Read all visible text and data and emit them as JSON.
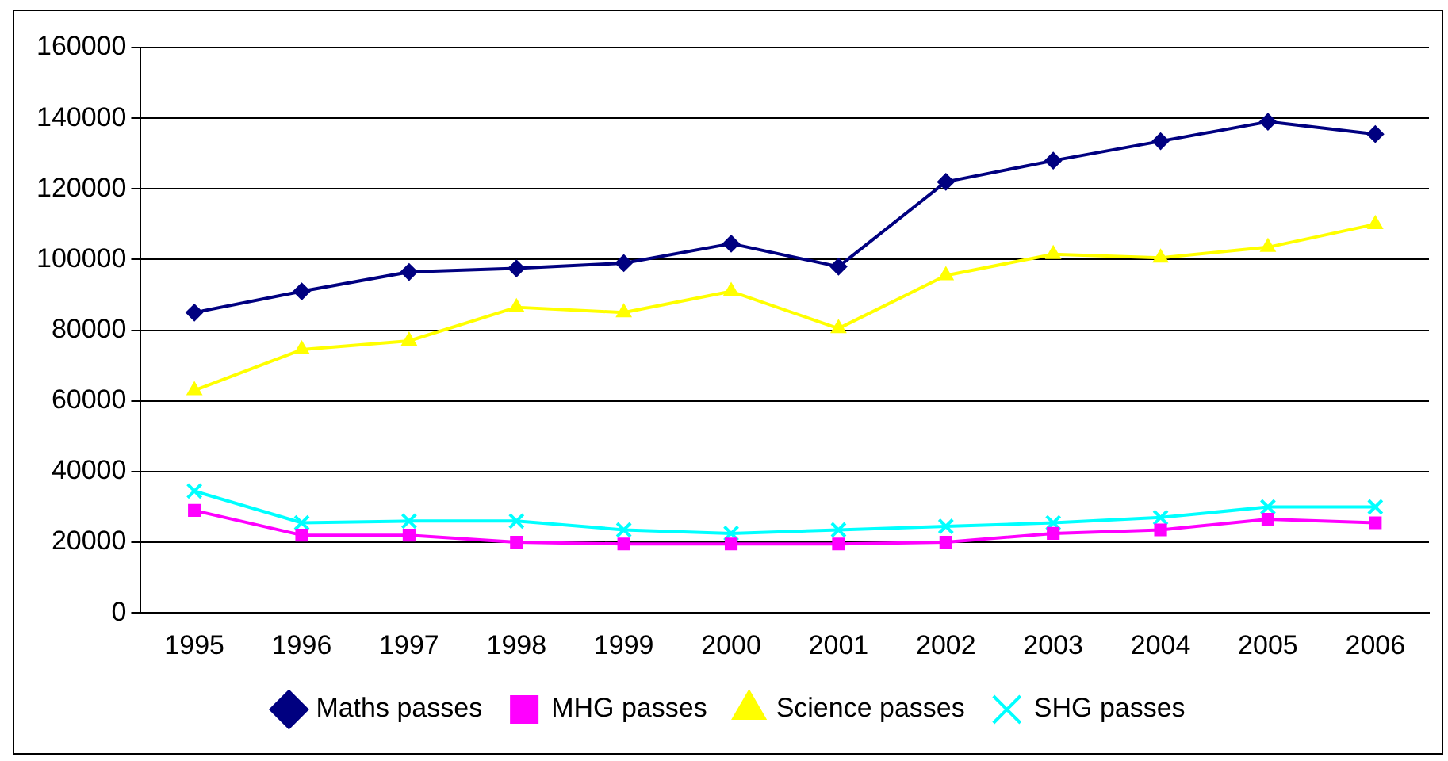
{
  "chart_data": {
    "type": "line",
    "categories": [
      "1995",
      "1996",
      "1997",
      "1998",
      "1999",
      "2000",
      "2001",
      "2002",
      "2003",
      "2004",
      "2005",
      "2006"
    ],
    "series": [
      {
        "name": "Maths passes",
        "color": "#000080",
        "marker": "diamond",
        "values": [
          85000,
          91000,
          96500,
          97500,
          99000,
          104500,
          98000,
          122000,
          128000,
          133500,
          139000,
          135500
        ]
      },
      {
        "name": "MHG passes",
        "color": "#ff00ff",
        "marker": "square",
        "values": [
          29000,
          22000,
          22000,
          20000,
          19500,
          19500,
          19500,
          20000,
          22500,
          23500,
          26500,
          25500
        ]
      },
      {
        "name": "Science passes",
        "color": "#ffff00",
        "marker": "triangle",
        "values": [
          63000,
          74500,
          77000,
          86500,
          85000,
          91000,
          80500,
          95500,
          101500,
          100500,
          103500,
          110000
        ]
      },
      {
        "name": "SHG passes",
        "color": "#00ffff",
        "marker": "cross",
        "values": [
          34500,
          25500,
          26000,
          26000,
          23500,
          22500,
          23500,
          24500,
          25500,
          27000,
          30000,
          30000
        ]
      }
    ],
    "ylim": [
      0,
      160000
    ],
    "yticks": [
      0,
      20000,
      40000,
      60000,
      80000,
      100000,
      120000,
      140000,
      160000
    ],
    "grid": "y",
    "legend": "bottom"
  }
}
